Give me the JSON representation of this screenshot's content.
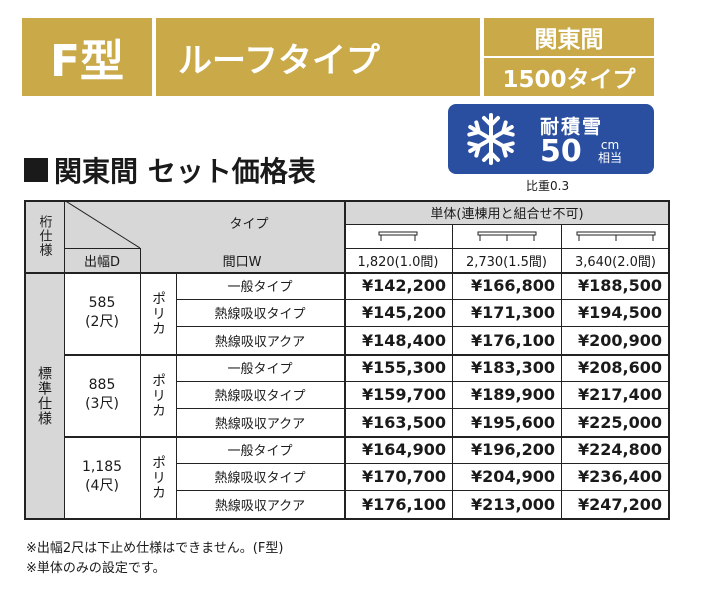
{
  "header": {
    "model": "F型",
    "type": "ルーフタイプ",
    "region": "関東間",
    "size_type": "1500タイプ"
  },
  "snow_badge": {
    "icon": "snowflake-icon",
    "label": "耐積雪",
    "value": "50",
    "unit_top": "cm",
    "unit_bottom": "相当"
  },
  "gravity": "比重0.3",
  "section_title": "関東間 セット価格表",
  "table": {
    "col_spec": "桁仕様",
    "col_type": "タイプ",
    "col_depth": "出幅D",
    "col_width": "間口W",
    "single_header": "単体(連棟用と組合せ不可)",
    "widths": [
      "1,820(1.0間)",
      "2,730(1.5間)",
      "3,640(2.0間)"
    ],
    "spec_label": "標準仕様",
    "material": "ポリカ",
    "groups": [
      {
        "depth": "585",
        "depth_sub": "(2尺)",
        "rows": [
          {
            "type": "一般タイプ",
            "prices": [
              "¥142,200",
              "¥166,800",
              "¥188,500"
            ]
          },
          {
            "type": "熱線吸収タイプ",
            "prices": [
              "¥145,200",
              "¥171,300",
              "¥194,500"
            ]
          },
          {
            "type": "熱線吸収アクア",
            "prices": [
              "¥148,400",
              "¥176,100",
              "¥200,900"
            ]
          }
        ]
      },
      {
        "depth": "885",
        "depth_sub": "(3尺)",
        "rows": [
          {
            "type": "一般タイプ",
            "prices": [
              "¥155,300",
              "¥183,300",
              "¥208,600"
            ]
          },
          {
            "type": "熱線吸収タイプ",
            "prices": [
              "¥159,700",
              "¥189,900",
              "¥217,400"
            ]
          },
          {
            "type": "熱線吸収アクア",
            "prices": [
              "¥163,500",
              "¥195,600",
              "¥225,000"
            ]
          }
        ]
      },
      {
        "depth": "1,185",
        "depth_sub": "(4尺)",
        "rows": [
          {
            "type": "一般タイプ",
            "prices": [
              "¥164,900",
              "¥196,200",
              "¥224,800"
            ]
          },
          {
            "type": "熱線吸収タイプ",
            "prices": [
              "¥170,700",
              "¥204,900",
              "¥236,400"
            ]
          },
          {
            "type": "熱線吸収アクア",
            "prices": [
              "¥176,100",
              "¥213,000",
              "¥247,200"
            ]
          }
        ]
      }
    ]
  },
  "notes": [
    "※出幅2尺は下止め仕様はできません。(F型)",
    "※単体のみの設定です。"
  ]
}
